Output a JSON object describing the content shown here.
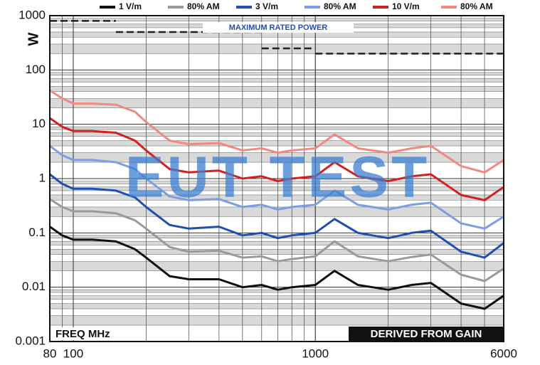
{
  "chart_data": {
    "type": "line",
    "y_label": "W",
    "x_label": "FREQ MHz",
    "note": "DERIVED FROM GAIN",
    "watermark": "EUT TEST",
    "log_x": true,
    "log_y": true,
    "grid": true,
    "xlim": [
      80,
      6000
    ],
    "xticks": [
      80,
      100,
      1000,
      6000
    ],
    "ylim": [
      0.001,
      1000
    ],
    "yticks": [
      0.001,
      0.01,
      0.1,
      1,
      10,
      100,
      1000
    ],
    "x": [
      80,
      90,
      100,
      120,
      150,
      180,
      200,
      250,
      300,
      400,
      500,
      600,
      700,
      800,
      1000,
      1200,
      1500,
      2000,
      2500,
      3000,
      4000,
      5000,
      6000
    ],
    "series": [
      {
        "name": "1 V/m",
        "color": "#111111",
        "values": [
          0.13,
          0.09,
          0.075,
          0.075,
          0.07,
          0.05,
          0.035,
          0.016,
          0.014,
          0.014,
          0.01,
          0.011,
          0.009,
          0.01,
          0.011,
          0.02,
          0.011,
          0.009,
          0.011,
          0.012,
          0.005,
          0.004,
          0.007
        ]
      },
      {
        "name": "80% AM",
        "color": "#9a9a9a",
        "values": [
          0.42,
          0.3,
          0.25,
          0.25,
          0.23,
          0.17,
          0.12,
          0.055,
          0.045,
          0.047,
          0.035,
          0.037,
          0.03,
          0.033,
          0.037,
          0.07,
          0.037,
          0.03,
          0.036,
          0.04,
          0.017,
          0.013,
          0.022
        ]
      },
      {
        "name": "3 V/m",
        "color": "#1f4fb0",
        "values": [
          1.2,
          0.8,
          0.65,
          0.65,
          0.6,
          0.45,
          0.3,
          0.14,
          0.12,
          0.13,
          0.09,
          0.1,
          0.08,
          0.09,
          0.1,
          0.18,
          0.1,
          0.08,
          0.1,
          0.11,
          0.045,
          0.035,
          0.065
        ]
      },
      {
        "name": "80% AM",
        "color": "#7d9ee0",
        "values": [
          4,
          2.7,
          2.2,
          2.2,
          2,
          1.5,
          1,
          0.47,
          0.4,
          0.42,
          0.3,
          0.33,
          0.27,
          0.3,
          0.33,
          0.6,
          0.33,
          0.27,
          0.33,
          0.36,
          0.15,
          0.12,
          0.2
        ]
      },
      {
        "name": "10 V/m",
        "color": "#d42020",
        "values": [
          13,
          9,
          7.5,
          7.5,
          7,
          5,
          3.3,
          1.5,
          1.3,
          1.4,
          1,
          1.1,
          0.9,
          1,
          1.1,
          2,
          1.1,
          0.9,
          1.1,
          1.2,
          0.5,
          0.4,
          0.7
        ]
      },
      {
        "name": "80% AM",
        "color": "#f08a80",
        "values": [
          42,
          30,
          24,
          24,
          23,
          17,
          11,
          5,
          4.3,
          4.5,
          3.3,
          3.6,
          3,
          3.3,
          3.6,
          6.5,
          3.6,
          3,
          3.6,
          4,
          1.7,
          1.3,
          2.2
        ]
      }
    ],
    "rated_power": {
      "label": "MAXIMUM RATED POWER",
      "color": "#222222",
      "segments": [
        {
          "x": [
            80,
            150
          ],
          "value": 800
        },
        {
          "x": [
            150,
            600
          ],
          "value": 500
        },
        {
          "x": [
            600,
            1000
          ],
          "value": 250
        },
        {
          "x": [
            1000,
            6000
          ],
          "value": 200
        }
      ]
    }
  }
}
